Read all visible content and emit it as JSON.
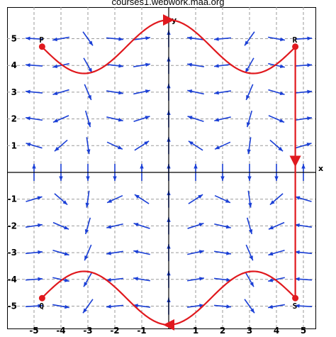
{
  "header": {
    "source": "courses1.webwork.maa.org"
  },
  "chart_data": {
    "type": "vector-field",
    "axes": {
      "xlabel": "x",
      "ylabel": "y",
      "xlim": [
        -5.2,
        5.7
      ],
      "ylim": [
        -5.8,
        5.8
      ],
      "x_ticks": [
        -5,
        -4,
        -3,
        -2,
        -1,
        1,
        2,
        3,
        4,
        5
      ],
      "y_ticks": [
        -5,
        -4,
        -3,
        -2,
        -1,
        1,
        2,
        3,
        4,
        5
      ],
      "x_tick_labels": [
        "-5",
        "-4",
        "-3",
        "-2",
        "-1",
        "1",
        "2",
        "3",
        "4",
        "5"
      ],
      "y_tick_labels": [
        "-5",
        "-4",
        "-3",
        "-2",
        "-1",
        "1",
        "2",
        "3",
        "4",
        "5"
      ],
      "grid": true,
      "grid_style": "dashed"
    },
    "points": [
      {
        "label": "P",
        "x": -4.7,
        "y": 4.7
      },
      {
        "label": "R",
        "x": 4.7,
        "y": 4.7
      },
      {
        "label": "Q",
        "x": -4.7,
        "y": -4.7
      },
      {
        "label": "S",
        "x": 4.7,
        "y": -4.7
      }
    ],
    "path": {
      "color": "#e0191e",
      "segments": [
        {
          "from": "P",
          "to": "R",
          "shape": "wave",
          "x": [
            -4.7,
            -3.1,
            0,
            3.1,
            4.7
          ],
          "y": [
            4.7,
            3.75,
            5.7,
            3.75,
            4.7
          ],
          "arrow_at_x": 0
        },
        {
          "from": "R",
          "to": "S",
          "shape": "line",
          "arrow_at_y": 0.2
        },
        {
          "from": "S",
          "to": "Q",
          "shape": "wave",
          "x": [
            4.7,
            3.1,
            0,
            -3.1,
            -4.7
          ],
          "y": [
            -4.7,
            -3.75,
            -5.7,
            -3.75,
            -4.7
          ],
          "arrow_at_x": 0
        }
      ]
    },
    "vector_field": {
      "color": "#1a3fd6",
      "formula": "F(x, y) = (-y*sin(x), cos(x))",
      "grid_x": [
        -5,
        -4,
        -3,
        -2,
        -1,
        0,
        1,
        2,
        3,
        4,
        5
      ],
      "grid_y": [
        -5,
        -4,
        -3,
        -2,
        -1,
        0,
        1,
        2,
        3,
        4,
        5
      ]
    }
  }
}
